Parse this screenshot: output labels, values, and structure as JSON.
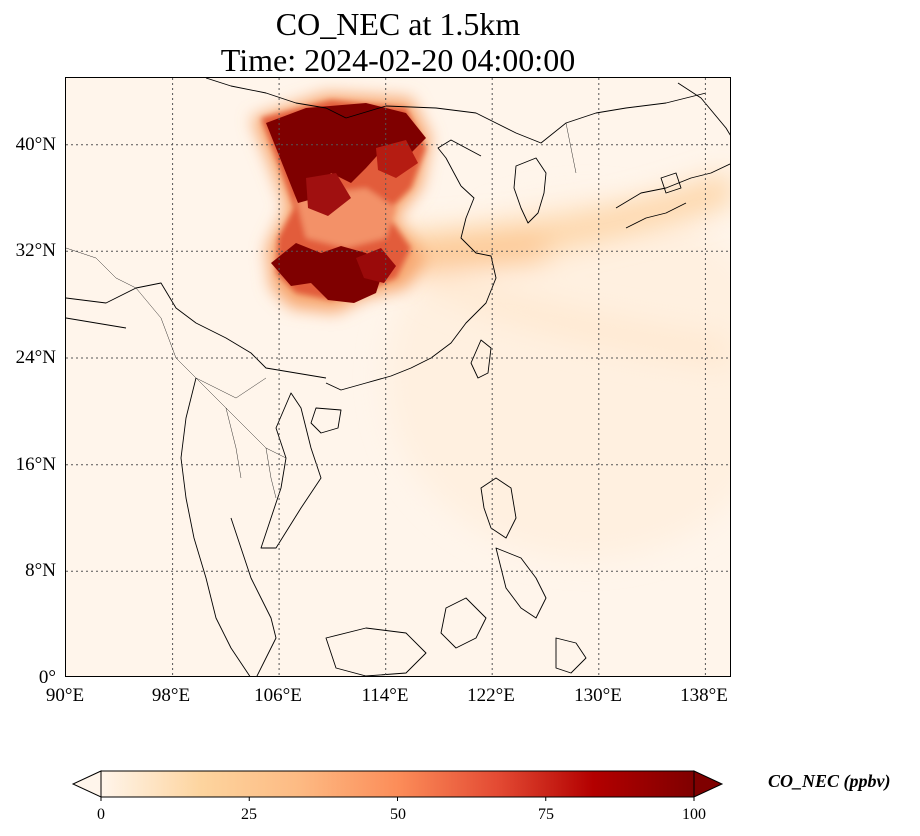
{
  "title_line1": "CO_NEC at 1.5km",
  "title_line2": "Time: 2024-02-20 04:00:00",
  "lat_ticks": [
    "0°",
    "8°N",
    "16°N",
    "24°N",
    "32°N",
    "40°N"
  ],
  "lon_ticks": [
    "90°E",
    "98°E",
    "106°E",
    "114°E",
    "122°E",
    "130°E",
    "138°E"
  ],
  "map_extent": {
    "lon_min": 90,
    "lon_max": 140,
    "lat_min": 0,
    "lat_max": 45
  },
  "gridlines": true,
  "colorbar": {
    "label": "CO_NEC (ppbv)",
    "min": 0,
    "max": 100,
    "ticks": [
      "0",
      "25",
      "50",
      "75",
      "100"
    ],
    "colormap": "OrRd",
    "extend": "both",
    "colors": [
      "#fff5eb",
      "#fdd49e",
      "#fdbb84",
      "#fc8d59",
      "#e34a33",
      "#b30000",
      "#7f0000"
    ]
  },
  "plume_regions": [
    {
      "name": "northern plume core",
      "lon": [
        104,
        117
      ],
      "lat": [
        35,
        43
      ],
      "value": 100
    },
    {
      "name": "southern plume core",
      "lon": [
        105,
        114
      ],
      "lat": [
        28,
        33
      ],
      "value": 95
    },
    {
      "name": "eastward plume tail",
      "lon": [
        114,
        140
      ],
      "lat": [
        31,
        36
      ],
      "value": 30
    }
  ]
}
